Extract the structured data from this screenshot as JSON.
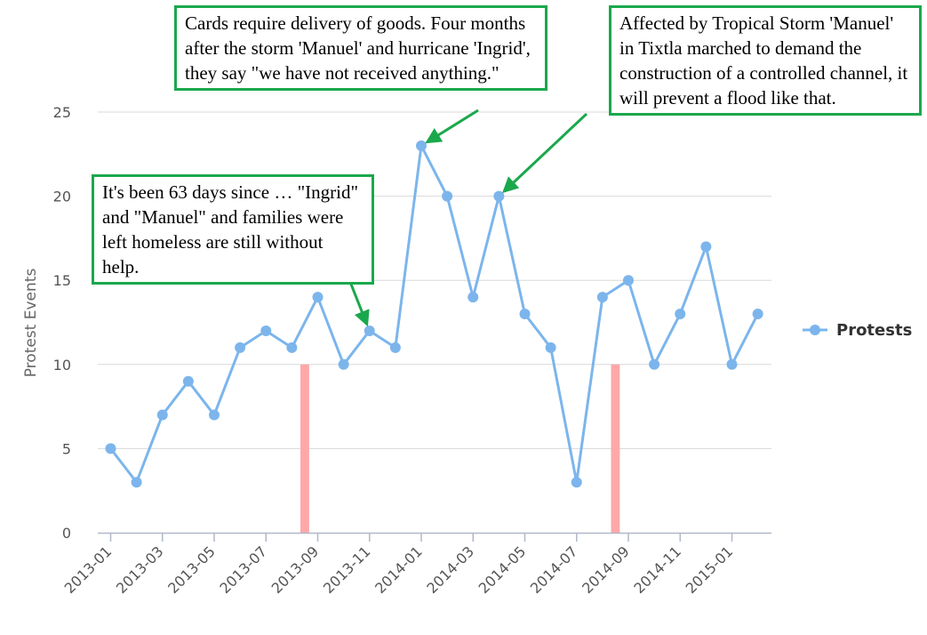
{
  "colors": {
    "series": "#7cb5ec",
    "band": "#ffa8a8",
    "annotation_border": "#1aa84c",
    "grid": "#d8d8d8"
  },
  "chart_data": {
    "type": "line",
    "ylabel": "Protest Events",
    "ylim": [
      0,
      25
    ],
    "yticks": [
      0,
      5,
      10,
      15,
      20,
      25
    ],
    "xticks": [
      "2013-01",
      "2013-03",
      "2013-05",
      "2013-07",
      "2013-09",
      "2013-11",
      "2014-01",
      "2014-03",
      "2014-05",
      "2014-07",
      "2014-09",
      "2014-11",
      "2015-01"
    ],
    "x": [
      "2013-01",
      "2013-02",
      "2013-03",
      "2013-04",
      "2013-05",
      "2013-06",
      "2013-07",
      "2013-08",
      "2013-09",
      "2013-10",
      "2013-11",
      "2013-12",
      "2014-01",
      "2014-02",
      "2014-03",
      "2014-04",
      "2014-05",
      "2014-06",
      "2014-07",
      "2014-08",
      "2014-09",
      "2014-10",
      "2014-11",
      "2014-12",
      "2015-01",
      "2015-02"
    ],
    "series": [
      {
        "name": "Protests",
        "values": [
          5,
          3,
          7,
          9,
          7,
          11,
          12,
          11,
          14,
          10,
          12,
          11,
          23,
          20,
          14,
          20,
          13,
          11,
          3,
          14,
          15,
          10,
          13,
          17,
          10,
          13
        ]
      }
    ],
    "bands": [
      {
        "x_from": "2013-08",
        "x_to": "2013-09",
        "y": 10
      },
      {
        "x_from": "2014-08",
        "x_to": "2014-09",
        "y": 10
      }
    ],
    "legend": {
      "position": "right"
    },
    "grid": true
  },
  "annotations": [
    {
      "text": "Cards require delivery of goods. Four months after the storm 'Manuel' and hurricane 'Ingrid',  they say \"we have not received anything.\"",
      "target_x": "2014-01",
      "target_y": 23
    },
    {
      "text": "Affected by Tropical Storm 'Manuel' in Tixtla marched to demand the construction of a controlled channel, it will prevent a flood like that.",
      "target_x": "2014-04",
      "target_y": 20
    },
    {
      "text": "It's been 63 days since … \"Ingrid\" and \"Manuel\" and families were left homeless are still without help.",
      "target_x": "2013-11",
      "target_y": 12
    }
  ]
}
